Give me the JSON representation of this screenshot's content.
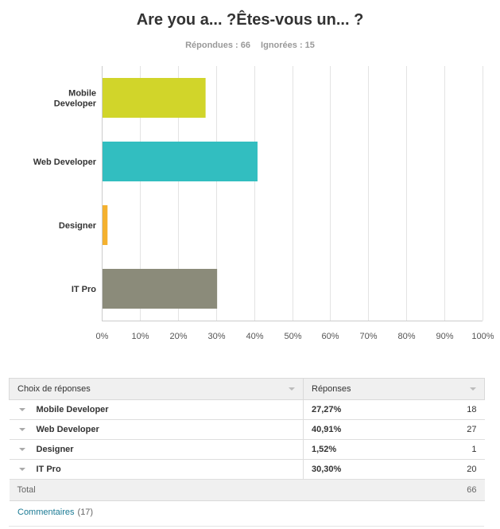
{
  "survey": {
    "question": "Are you a... ?Êtes-vous un... ?",
    "answered": "Répondues : 66",
    "skipped": "Ignorées : 15"
  },
  "chart_data": {
    "type": "bar",
    "orientation": "horizontal",
    "categories": [
      "Mobile Developer",
      "Web Developer",
      "Designer",
      "IT Pro"
    ],
    "values": [
      27.27,
      40.91,
      1.52,
      30.3
    ],
    "colors": [
      "#d1d52a",
      "#32bec0",
      "#f4b12f",
      "#8b8b7a"
    ],
    "xlim": [
      0,
      100
    ],
    "xticks": [
      "0%",
      "10%",
      "20%",
      "30%",
      "40%",
      "50%",
      "60%",
      "70%",
      "80%",
      "90%",
      "100%"
    ],
    "grid": true,
    "legend": "none"
  },
  "table": {
    "col_choice": "Choix de réponses",
    "col_responses": "Réponses",
    "rows": [
      {
        "choice": "Mobile Developer",
        "pct": "27,27%",
        "count": "18"
      },
      {
        "choice": "Web Developer",
        "pct": "40,91%",
        "count": "27"
      },
      {
        "choice": "Designer",
        "pct": "1,52%",
        "count": "1"
      },
      {
        "choice": "IT Pro",
        "pct": "30,30%",
        "count": "20"
      }
    ],
    "total_label": "Total",
    "total_count": "66"
  },
  "comments": {
    "label": "Commentaires",
    "count": "(17)"
  }
}
